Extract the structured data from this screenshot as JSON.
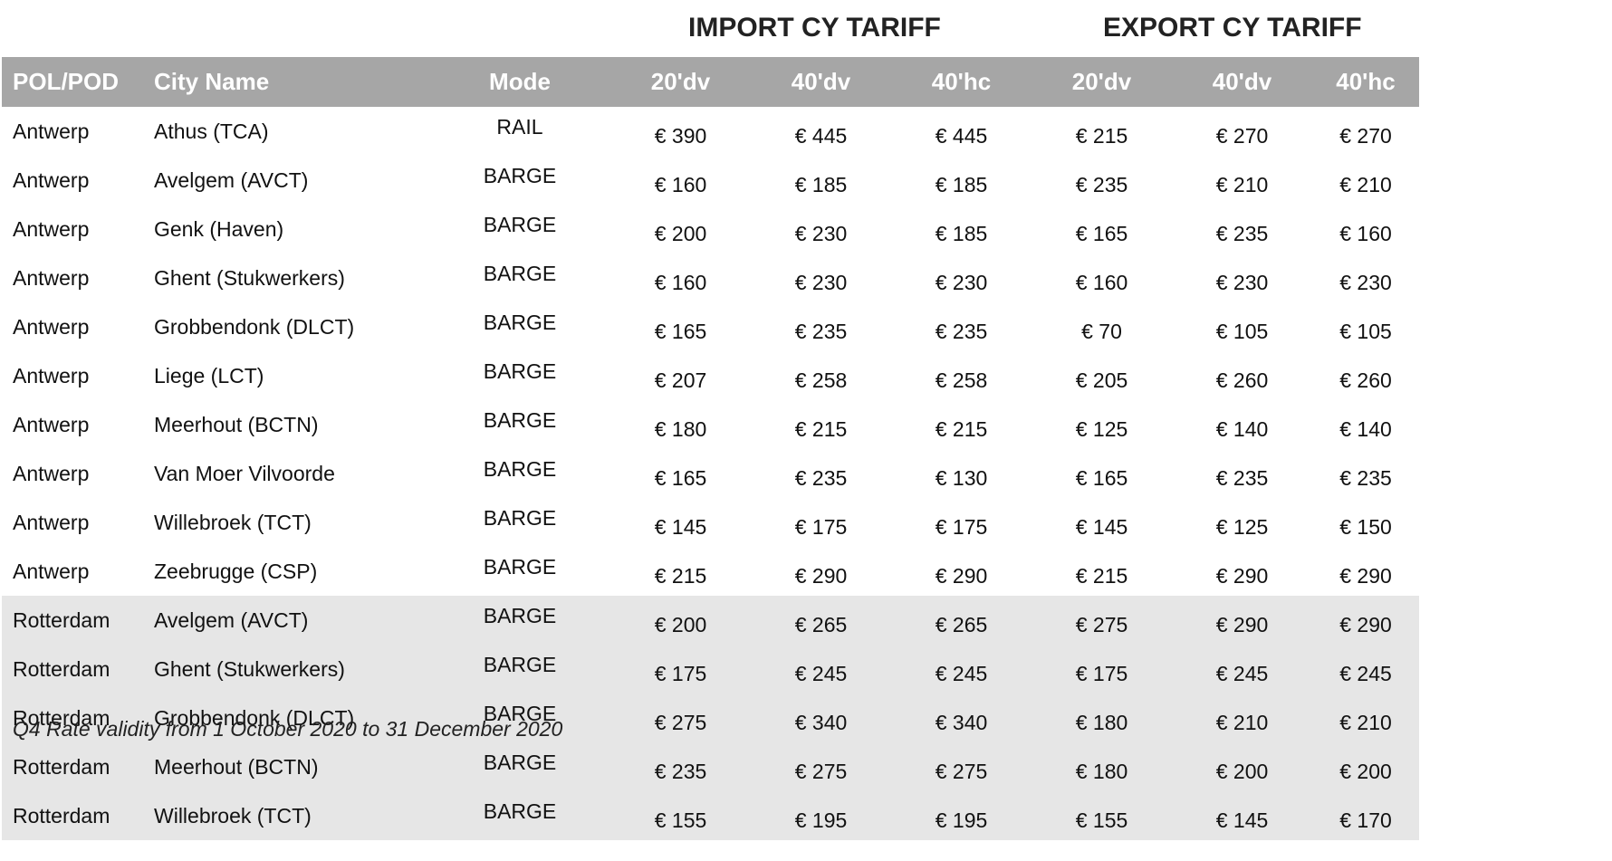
{
  "headers": {
    "import_group": "IMPORT CY TARIFF",
    "export_group": "EXPORT CY TARIFF",
    "columns": [
      "POL/POD",
      "City Name",
      "Mode",
      "20'dv",
      "40'dv",
      "40'hc",
      "20'dv",
      "40'dv",
      "40'hc"
    ]
  },
  "rows": [
    [
      "Antwerp",
      "Athus (TCA)",
      "RAIL",
      "€ 390",
      "€ 445",
      "€ 445",
      "€ 215",
      "€ 270",
      "€ 270"
    ],
    [
      "Antwerp",
      "Avelgem (AVCT)",
      "BARGE",
      "€ 160",
      "€ 185",
      "€ 185",
      "€ 235",
      "€ 210",
      "€ 210"
    ],
    [
      "Antwerp",
      "Genk (Haven)",
      "BARGE",
      "€ 200",
      "€ 230",
      "€ 185",
      "€ 165",
      "€ 235",
      "€ 160"
    ],
    [
      "Antwerp",
      "Ghent (Stukwerkers)",
      "BARGE",
      "€ 160",
      "€ 230",
      "€ 230",
      "€ 160",
      "€ 230",
      "€ 230"
    ],
    [
      "Antwerp",
      "Grobbendonk (DLCT)",
      "BARGE",
      "€ 165",
      "€ 235",
      "€ 235",
      "€ 70",
      "€ 105",
      "€ 105"
    ],
    [
      "Antwerp",
      "Liege (LCT)",
      "BARGE",
      "€ 207",
      "€ 258",
      "€ 258",
      "€ 205",
      "€ 260",
      "€ 260"
    ],
    [
      "Antwerp",
      "Meerhout (BCTN)",
      "BARGE",
      "€ 180",
      "€ 215",
      "€ 215",
      "€ 125",
      "€ 140",
      "€ 140"
    ],
    [
      "Antwerp",
      "Van Moer Vilvoorde",
      "BARGE",
      "€ 165",
      "€ 235",
      "€ 130",
      "€ 165",
      "€ 235",
      "€ 235"
    ],
    [
      "Antwerp",
      "Willebroek (TCT)",
      "BARGE",
      "€ 145",
      "€ 175",
      "€ 175",
      "€ 145",
      "€ 125",
      "€ 150"
    ],
    [
      "Antwerp",
      "Zeebrugge (CSP)",
      "BARGE",
      "€ 215",
      "€ 290",
      "€ 290",
      "€ 215",
      "€ 290",
      "€ 290"
    ],
    [
      "Rotterdam",
      "Avelgem (AVCT)",
      "BARGE",
      "€ 200",
      "€ 265",
      "€ 265",
      "€ 275",
      "€ 290",
      "€ 290"
    ],
    [
      "Rotterdam",
      "Ghent (Stukwerkers)",
      "BARGE",
      "€ 175",
      "€ 245",
      "€ 245",
      "€ 175",
      "€ 245",
      "€ 245"
    ],
    [
      "Rotterdam",
      "Grobbendonk (DLCT)",
      "BARGE",
      "€ 275",
      "€ 340",
      "€ 340",
      "€ 180",
      "€ 210",
      "€ 210"
    ],
    [
      "Rotterdam",
      "Meerhout (BCTN)",
      "BARGE",
      "€ 235",
      "€ 275",
      "€ 275",
      "€ 180",
      "€ 200",
      "€ 200"
    ],
    [
      "Rotterdam",
      "Willebroek (TCT)",
      "BARGE",
      "€ 155",
      "€ 195",
      "€ 195",
      "€ 155",
      "€ 145",
      "€ 170"
    ]
  ],
  "footnote": "Q4 Rate validity from 1 October 2020 to 31 December 2020",
  "colors": {
    "header_bg": "#a6a6a6",
    "header_text": "#ffffff",
    "rotterdam_band": "#e6e6e6"
  }
}
